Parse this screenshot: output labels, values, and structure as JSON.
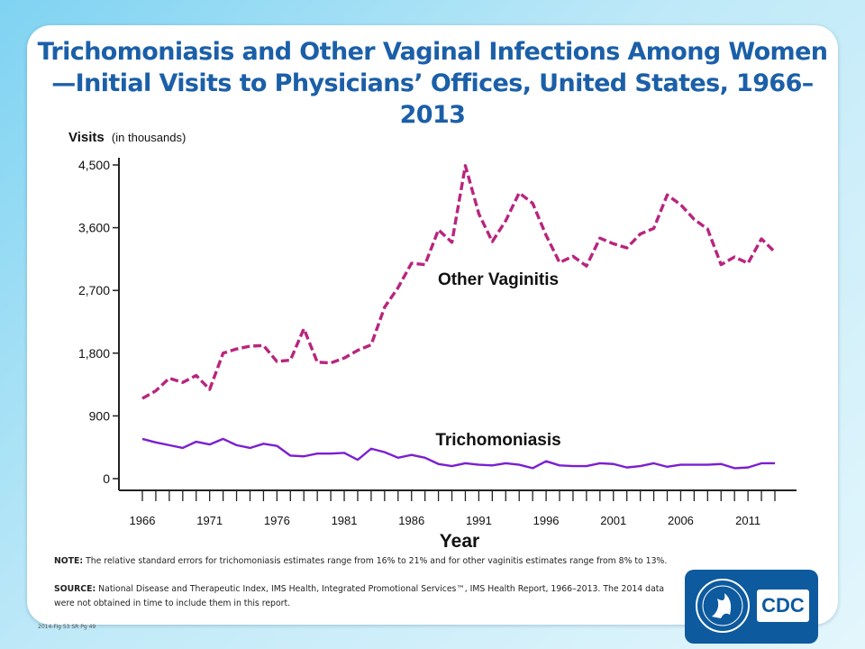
{
  "title": "Trichomoniasis and Other Vaginal Infections Among Women—Initial Visits to Physicians’ Offices, United States, 1966–2013",
  "note_label": "NOTE:",
  "note_text": "The relative standard errors for trichomoniasis estimates range from 16% to 21% and for other vaginitis estimates range from 8% to 13%.",
  "source_label": "SOURCE:",
  "source_text": "National Disease and Therapeutic Index, IMS Health, Integrated Promotional Services™, IMS Health Report, 1966–2013. The 2014 data were not obtained in time to include them in this report.",
  "figure_ref": "2014-Fig 53 SR Pg 49",
  "logo_text": "CDC",
  "colors": {
    "title": "#1b5fa8",
    "other_vaginitis": "#b8257e",
    "trichomoniasis": "#7b1fd0",
    "logo_bg": "#0d5a9e"
  },
  "chart_data": {
    "type": "line",
    "ylabel": "Visits",
    "ylabel_unit": "(in thousands)",
    "xlabel": "Year",
    "ylim": [
      0,
      4500
    ],
    "xlim": [
      1966,
      2013
    ],
    "yticks": [
      0,
      900,
      1800,
      2700,
      3600,
      4500
    ],
    "ytick_labels": [
      "0",
      "900",
      "1,800",
      "2,700",
      "3,600",
      "4,500"
    ],
    "xtick_labels": [
      "1966",
      "1971",
      "1976",
      "1981",
      "1986",
      "1991",
      "1996",
      "2001",
      "2006",
      "2011"
    ],
    "grid": false,
    "x": [
      1966,
      1967,
      1968,
      1969,
      1970,
      1971,
      1972,
      1973,
      1974,
      1975,
      1976,
      1977,
      1978,
      1979,
      1980,
      1981,
      1982,
      1983,
      1984,
      1985,
      1986,
      1987,
      1988,
      1989,
      1990,
      1991,
      1992,
      1993,
      1994,
      1995,
      1996,
      1997,
      1998,
      1999,
      2000,
      2001,
      2002,
      2003,
      2004,
      2005,
      2006,
      2007,
      2008,
      2009,
      2010,
      2011,
      2012,
      2013
    ],
    "series": [
      {
        "name": "Other Vaginitis",
        "style": "dashed",
        "values": [
          1150,
          1260,
          1440,
          1380,
          1480,
          1280,
          1800,
          1860,
          1900,
          1910,
          1680,
          1700,
          2150,
          1670,
          1660,
          1730,
          1840,
          1920,
          2460,
          2740,
          3090,
          3070,
          3570,
          3390,
          4490,
          3800,
          3400,
          3700,
          4100,
          3950,
          3490,
          3100,
          3190,
          3050,
          3450,
          3370,
          3310,
          3510,
          3590,
          4070,
          3930,
          3720,
          3580,
          3070,
          3180,
          3090,
          3440,
          3250
        ]
      },
      {
        "name": "Trichomoniasis",
        "style": "solid",
        "values": [
          570,
          520,
          480,
          440,
          530,
          490,
          570,
          480,
          440,
          500,
          470,
          330,
          320,
          360,
          360,
          370,
          270,
          430,
          380,
          300,
          340,
          300,
          210,
          180,
          220,
          200,
          190,
          220,
          200,
          150,
          250,
          190,
          180,
          180,
          220,
          210,
          160,
          180,
          220,
          170,
          200,
          200,
          200,
          210,
          150,
          160,
          220,
          220
        ]
      }
    ],
    "annotations": [
      "Other Vaginitis",
      "Trichomoniasis"
    ]
  }
}
